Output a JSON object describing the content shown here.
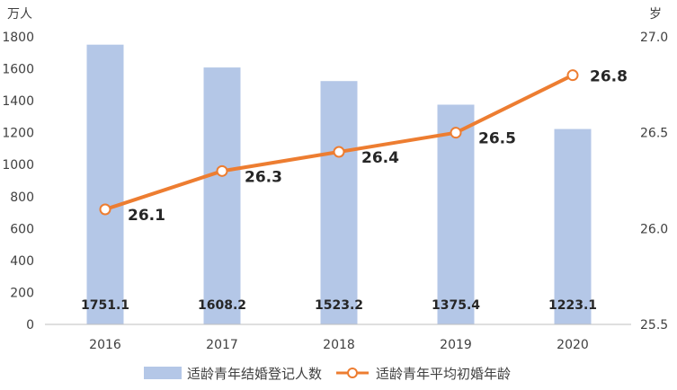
{
  "chart_data": {
    "type": "bar+line",
    "categories": [
      "2016",
      "2017",
      "2018",
      "2019",
      "2020"
    ],
    "left_axis": {
      "unit": "万人",
      "min": 0,
      "max": 1800,
      "ticks": [
        "0",
        "200",
        "400",
        "600",
        "800",
        "1000",
        "1200",
        "1400",
        "1600",
        "1800"
      ]
    },
    "right_axis": {
      "unit": "岁",
      "min": 25.5,
      "max": 27.0,
      "ticks": [
        "25.5",
        "26.0",
        "26.5",
        "27.0"
      ]
    },
    "series": [
      {
        "name": "适龄青年结婚登记人数",
        "type": "bar",
        "axis": "left",
        "color": "#b4c7e7",
        "values": [
          1751.1,
          1608.2,
          1523.2,
          1375.4,
          1223.1
        ],
        "labels": [
          "1751.1",
          "1608.2",
          "1523.2",
          "1375.4",
          "1223.1"
        ]
      },
      {
        "name": "适龄青年平均初婚年龄",
        "type": "line",
        "axis": "right",
        "color": "#ed7d31",
        "values": [
          26.1,
          26.3,
          26.4,
          26.5,
          26.8
        ],
        "labels": [
          "26.1",
          "26.3",
          "26.4",
          "26.5",
          "26.8"
        ]
      }
    ],
    "grid": false,
    "legend": "bottom"
  }
}
